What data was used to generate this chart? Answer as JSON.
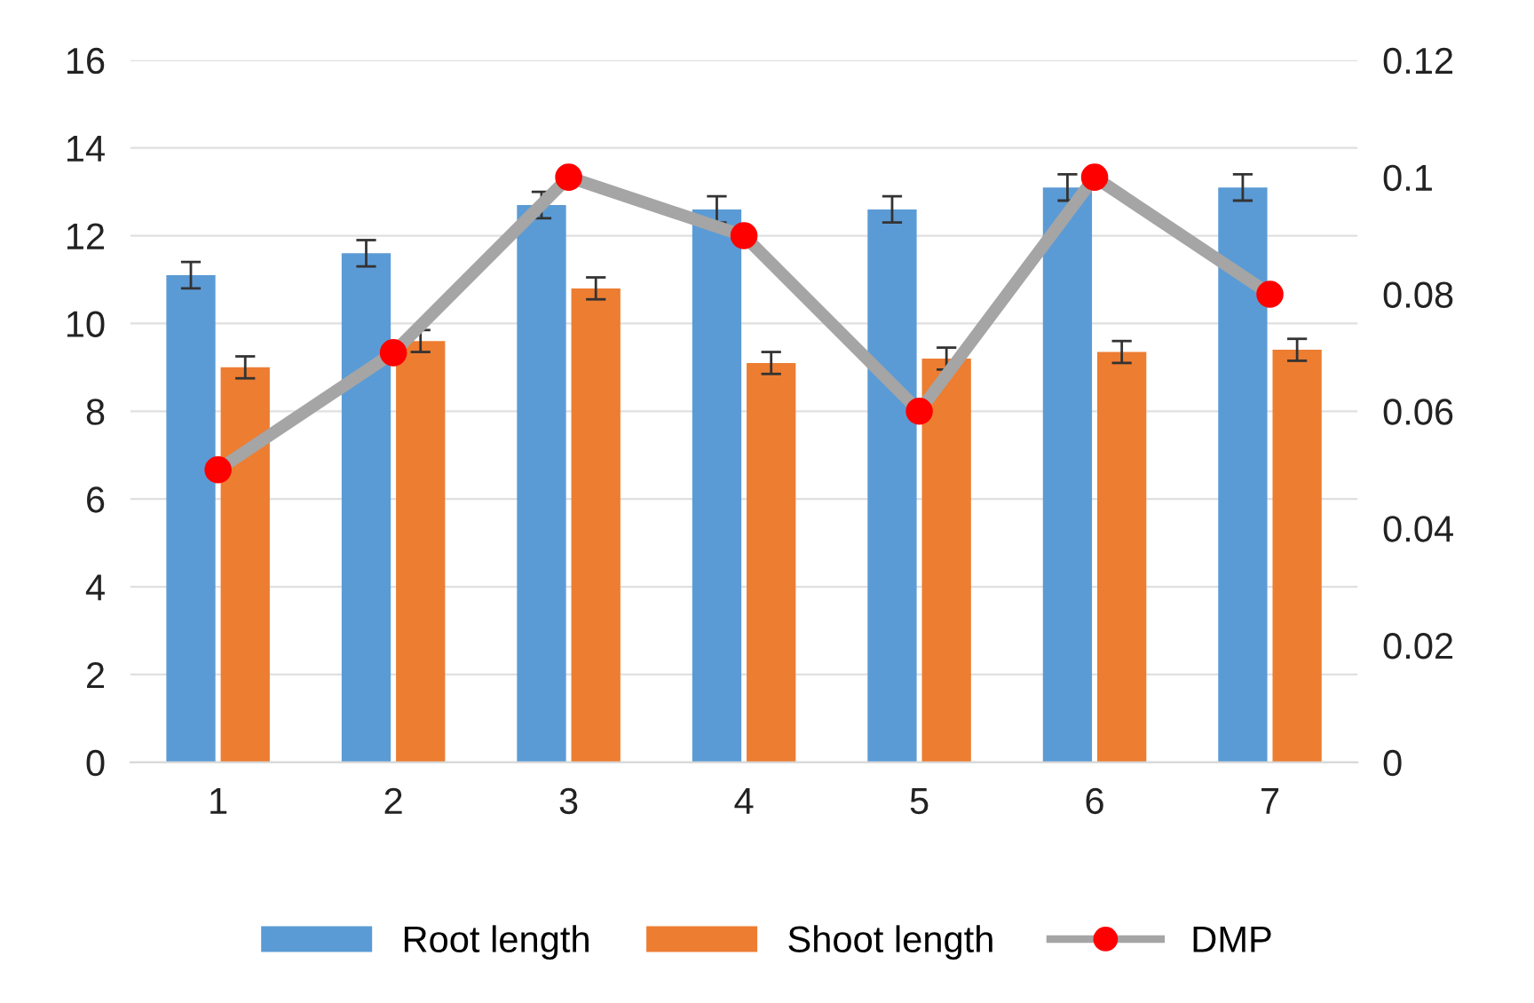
{
  "chart_data": {
    "type": "bar",
    "categories": [
      "1",
      "2",
      "3",
      "4",
      "5",
      "6",
      "7"
    ],
    "series": [
      {
        "name": "Root length",
        "color": "#5b9bd5",
        "values": [
          11.1,
          11.6,
          12.7,
          12.6,
          12.6,
          13.1,
          13.1
        ],
        "errors": [
          0.3,
          0.3,
          0.3,
          0.3,
          0.3,
          0.3,
          0.3
        ]
      },
      {
        "name": "Shoot length",
        "color": "#ed7d31",
        "values": [
          9.0,
          9.6,
          10.8,
          9.1,
          9.2,
          9.35,
          9.4
        ],
        "errors": [
          0.25,
          0.25,
          0.25,
          0.25,
          0.25,
          0.25,
          0.25
        ]
      },
      {
        "name": "DMP",
        "type": "line",
        "axis": "y2",
        "color": "#a5a5a5",
        "values": [
          0.05,
          0.07,
          0.1,
          0.09,
          0.06,
          0.1,
          0.08
        ]
      }
    ],
    "ylim": [
      0,
      16
    ],
    "yticks": [
      0,
      2,
      4,
      6,
      8,
      10,
      12,
      14,
      16
    ],
    "y2lim": [
      0,
      0.12
    ],
    "y2ticks": [
      {
        "value": 0,
        "label": "0"
      },
      0.02,
      0.04,
      0.06,
      0.08,
      {
        "value": 0.1,
        "label": "0.1"
      },
      0.12
    ],
    "grid": "y",
    "legend": "bottom",
    "marker": "circle"
  }
}
